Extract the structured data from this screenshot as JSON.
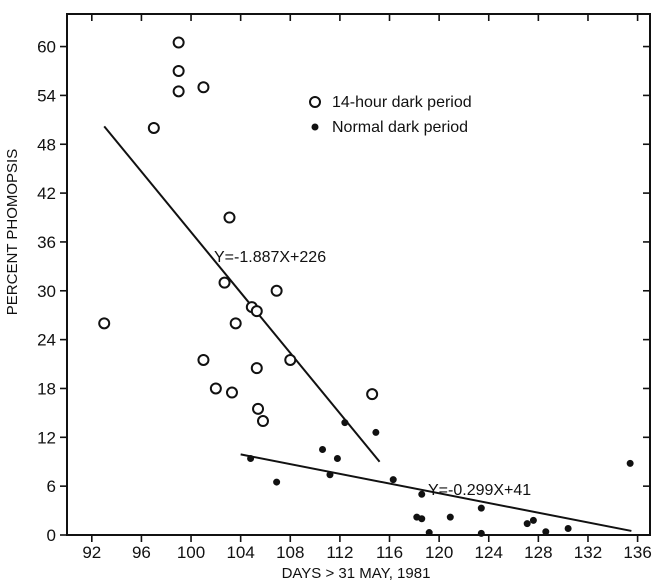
{
  "chart_data": {
    "type": "scatter",
    "title": "",
    "xlabel": "DAYS > 31 MAY, 1981",
    "ylabel": "PERCENT PHOMOPSIS",
    "xlim": [
      90,
      137
    ],
    "ylim": [
      0,
      64
    ],
    "x_ticks": [
      92,
      96,
      100,
      104,
      108,
      112,
      116,
      120,
      124,
      128,
      132,
      136
    ],
    "y_ticks": [
      0,
      6,
      12,
      18,
      24,
      30,
      36,
      42,
      48,
      54,
      60
    ],
    "grid": false,
    "legend_position": "top-right",
    "series": [
      {
        "name": "14-hour dark period",
        "marker": "open-circle",
        "points": [
          [
            93,
            26
          ],
          [
            97,
            50
          ],
          [
            99,
            60.5
          ],
          [
            99,
            57
          ],
          [
            99,
            54.5
          ],
          [
            101,
            55
          ],
          [
            101,
            21.5
          ],
          [
            102,
            18
          ],
          [
            102.7,
            31
          ],
          [
            103.1,
            39
          ],
          [
            103.3,
            17.5
          ],
          [
            103.6,
            26
          ],
          [
            104.9,
            28
          ],
          [
            105.3,
            27.5
          ],
          [
            105.3,
            20.5
          ],
          [
            105.4,
            15.5
          ],
          [
            105.8,
            14
          ],
          [
            106.9,
            30
          ],
          [
            108,
            21.5
          ],
          [
            114.6,
            17.3
          ]
        ]
      },
      {
        "name": "Normal dark period",
        "marker": "filled-dot",
        "points": [
          [
            104.8,
            9.4
          ],
          [
            106.9,
            6.5
          ],
          [
            110.6,
            10.5
          ],
          [
            111.2,
            7.4
          ],
          [
            111.8,
            9.4
          ],
          [
            112.4,
            13.8
          ],
          [
            114.9,
            12.6
          ],
          [
            116.3,
            6.8
          ],
          [
            118.2,
            2.2
          ],
          [
            118.6,
            5
          ],
          [
            118.6,
            2
          ],
          [
            119.2,
            0.3
          ],
          [
            120.9,
            2.2
          ],
          [
            123.4,
            0.2
          ],
          [
            123.4,
            3.3
          ],
          [
            127.1,
            1.4
          ],
          [
            127.6,
            1.8
          ],
          [
            128.6,
            0.4
          ],
          [
            130.4,
            0.8
          ],
          [
            135.4,
            8.8
          ]
        ]
      }
    ],
    "regression_lines": [
      {
        "label": "Y=-1.887X+226",
        "x_range": [
          93,
          115.2
        ],
        "y_range": [
          50.2,
          9
        ]
      },
      {
        "label": "Y=-0.299X+41",
        "x_range": [
          104,
          135.5
        ],
        "y_range": [
          9.9,
          0.5
        ]
      }
    ]
  }
}
